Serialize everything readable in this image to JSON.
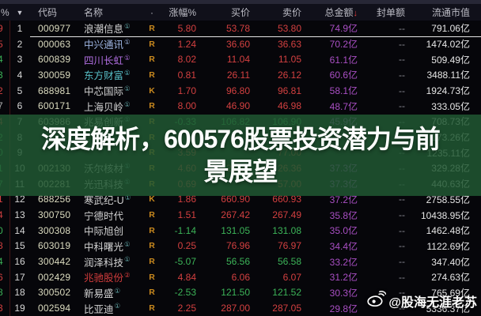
{
  "banner": {
    "line1": "深度解析，600576股票投资潜力与前",
    "line2": "景展望",
    "bg_color": "#215832",
    "text_color": "#ffffff"
  },
  "watermark": {
    "handle": "@股海无涯老苏",
    "icon": "weibo-icon"
  },
  "header": {
    "extra": "%",
    "sort_caret": "▼",
    "code": "代码",
    "name": "名称",
    "dot": "·",
    "change": "涨幅%",
    "buy": "买价",
    "sell": "卖价",
    "amount": "总金额",
    "amount_sort_arrow": "↓",
    "seal": "封单额",
    "cap": "流通市值"
  },
  "colors": {
    "up": "#d34040",
    "down": "#3cb458",
    "amount": "#a94fc4",
    "code": "#dcdcc0",
    "banner_green": "#215832"
  },
  "table": {
    "rows": [
      {
        "edge": "9",
        "edge_dir": "up",
        "num": "1",
        "code": "000977",
        "name": "浪潮信息",
        "sup": "①",
        "name_color": "",
        "marker": "R",
        "change": "5.80",
        "dir": "up",
        "buy": "53.78",
        "sell": "53.80",
        "amount": "74.9亿",
        "seal": "--",
        "cap": "791.06亿"
      },
      {
        "edge": "5",
        "edge_dir": "up",
        "num": "2",
        "code": "000063",
        "name": "中兴通讯",
        "sup": "①",
        "name_color": "#9db4e0",
        "marker": "R",
        "change": "1.24",
        "dir": "up",
        "buy": "36.60",
        "sell": "36.63",
        "amount": "70.2亿",
        "seal": "--",
        "cap": "1474.02亿"
      },
      {
        "edge": "4",
        "edge_dir": "down",
        "num": "3",
        "code": "600839",
        "name": "四川长虹",
        "sup": "①",
        "name_color": "#b06ee0",
        "marker": "R",
        "change": "8.02",
        "dir": "up",
        "buy": "11.04",
        "sell": "11.05",
        "amount": "61.1亿",
        "seal": "--",
        "cap": "509.49亿"
      },
      {
        "edge": "3",
        "edge_dir": "down",
        "num": "4",
        "code": "300059",
        "name": "东方财富",
        "sup": "①",
        "name_color": "#58c0c8",
        "marker": "R",
        "change": "0.81",
        "dir": "up",
        "buy": "26.11",
        "sell": "26.12",
        "amount": "60.6亿",
        "seal": "--",
        "cap": "3488.11亿"
      },
      {
        "edge": "2",
        "edge_dir": "up",
        "num": "5",
        "code": "688981",
        "name": "中芯国际",
        "sup": "①",
        "name_color": "",
        "marker": "K",
        "change": "1.70",
        "dir": "up",
        "buy": "96.80",
        "sell": "96.81",
        "amount": "58.1亿",
        "seal": "--",
        "cap": "1924.73亿"
      },
      {
        "edge": "7",
        "edge_dir": "gray",
        "num": "6",
        "code": "600171",
        "name": "上海贝岭",
        "sup": "①",
        "name_color": "",
        "marker": "R",
        "change": "8.00",
        "dir": "up",
        "buy": "46.90",
        "sell": "46.98",
        "amount": "48.7亿",
        "seal": "--",
        "cap": "333.05亿"
      },
      {
        "edge": "4",
        "edge_dir": "up",
        "num": "7",
        "code": "603986",
        "name": "兆易创新",
        "sup": "①",
        "name_color": "",
        "marker": "R",
        "change": "-0.33",
        "dir": "down",
        "buy": "106.82",
        "sell": "106.90",
        "amount": "45.9亿",
        "seal": "--",
        "cap": "708.73亿"
      },
      {
        "edge": "2",
        "edge_dir": "down",
        "num": "8",
        "code": "",
        "name": "",
        "sup": "",
        "name_color": "",
        "marker": "R",
        "change": "",
        "dir": "up",
        "buy": "",
        "sell": "",
        "amount": "",
        "seal": "--",
        "cap": "173.26亿"
      },
      {
        "edge": "0",
        "edge_dir": "down",
        "num": "9",
        "code": "",
        "name": "",
        "sup": "",
        "name_color": "",
        "marker": "R",
        "change": "3.59",
        "dir": "up",
        "buy": "",
        "sell": "77.00",
        "amount": "",
        "seal": "--",
        "cap": "1235.11亿"
      },
      {
        "edge": "1",
        "edge_dir": "down",
        "num": "10",
        "code": "002130",
        "name": "沃尔核材",
        "sup": "①",
        "name_color": "",
        "marker": "R",
        "change": "4.60",
        "dir": "up",
        "buy": "26.35",
        "sell": "26.36",
        "amount": "37.3亿",
        "seal": "--",
        "cap": "329.28亿"
      },
      {
        "edge": "7",
        "edge_dir": "down",
        "num": "11",
        "code": "002281",
        "name": "光迅科技",
        "sup": "①",
        "name_color": "",
        "marker": "R",
        "change": "0.69",
        "dir": "up",
        "buy": "",
        "sell": "57.00",
        "amount": "37.3亿",
        "seal": "--",
        "cap": "440.63亿"
      },
      {
        "edge": "1",
        "edge_dir": "up",
        "num": "12",
        "code": "688256",
        "name": "寒武纪-U",
        "sup": "①",
        "name_color": "",
        "marker": "K",
        "change": "1.86",
        "dir": "up",
        "buy": "660.90",
        "sell": "660.93",
        "amount": "37.2亿",
        "seal": "--",
        "cap": "2758.55亿"
      },
      {
        "edge": "4",
        "edge_dir": "up",
        "num": "13",
        "code": "300750",
        "name": "宁德时代",
        "sup": "",
        "name_color": "",
        "marker": "R",
        "change": "1.51",
        "dir": "up",
        "buy": "267.42",
        "sell": "267.49",
        "amount": "35.8亿",
        "seal": "--",
        "cap": "10438.95亿"
      },
      {
        "edge": "0",
        "edge_dir": "down",
        "num": "14",
        "code": "300308",
        "name": "中际旭创",
        "sup": "",
        "name_color": "",
        "marker": "R",
        "change": "-1.14",
        "dir": "down",
        "buy": "131.05",
        "sell": "131.08",
        "amount": "35.0亿",
        "seal": "--",
        "cap": "1462.48亿"
      },
      {
        "edge": "8",
        "edge_dir": "up",
        "num": "15",
        "code": "603019",
        "name": "中科曙光",
        "sup": "①",
        "name_color": "",
        "marker": "R",
        "change": "0.25",
        "dir": "up",
        "buy": "76.96",
        "sell": "76.97",
        "amount": "34.4亿",
        "seal": "--",
        "cap": "1122.69亿"
      },
      {
        "edge": "4",
        "edge_dir": "down",
        "num": "16",
        "code": "300442",
        "name": "润泽科技",
        "sup": "①",
        "name_color": "",
        "marker": "R",
        "change": "-5.07",
        "dir": "down",
        "buy": "56.56",
        "sell": "56.58",
        "amount": "33.2亿",
        "seal": "--",
        "cap": "347.40亿"
      },
      {
        "edge": "6",
        "edge_dir": "up",
        "num": "17",
        "code": "002429",
        "name": "兆驰股份",
        "sup": "②",
        "name_color": "#d23c3c",
        "marker": "R",
        "change": "4.84",
        "dir": "up",
        "buy": "6.06",
        "sell": "6.07",
        "amount": "31.2亿",
        "seal": "--",
        "cap": "274.63亿"
      },
      {
        "edge": "8",
        "edge_dir": "down",
        "num": "18",
        "code": "300502",
        "name": "新易盛",
        "sup": "①",
        "name_color": "",
        "marker": "R",
        "change": "-2.53",
        "dir": "down",
        "buy": "121.50",
        "sell": "121.52",
        "amount": "30.3亿",
        "seal": "--",
        "cap": "765.69亿"
      },
      {
        "edge": "3",
        "edge_dir": "up",
        "num": "19",
        "code": "002594",
        "name": "比亚迪",
        "sup": "①",
        "name_color": "",
        "marker": "R",
        "change": "2.25",
        "dir": "up",
        "buy": "287.00",
        "sell": "287.05",
        "amount": "29.8亿",
        "seal": "--",
        "cap": "5336.37亿"
      }
    ]
  }
}
